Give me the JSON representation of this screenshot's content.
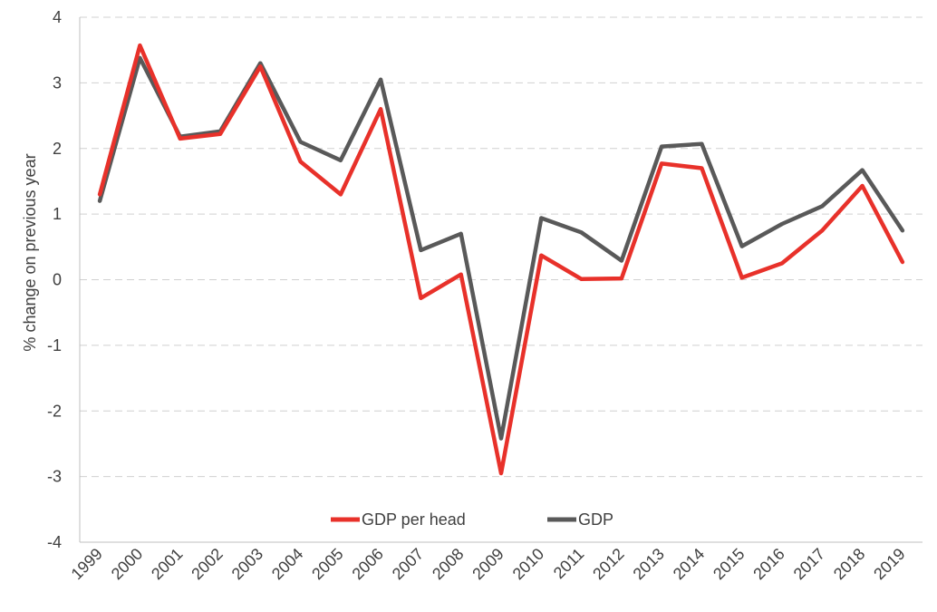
{
  "chart_data": {
    "type": "line",
    "title": "",
    "xlabel": "",
    "ylabel": "% change on previous  year",
    "ylim": [
      -4,
      4
    ],
    "yticks": [
      -4,
      -3,
      -2,
      -1,
      0,
      1,
      2,
      3,
      4
    ],
    "grid": "horizontal dashed",
    "legend_position": "bottom-center-inside",
    "categories": [
      "1999",
      "2000",
      "2001",
      "2002",
      "2003",
      "2004",
      "2005",
      "2006",
      "2007",
      "2008",
      "2009",
      "2010",
      "2011",
      "2012",
      "2013",
      "2014",
      "2015",
      "2016",
      "2017",
      "2018",
      "2019"
    ],
    "series": [
      {
        "name": "GDP per head",
        "color": "#e8312a",
        "values": [
          1.3,
          3.57,
          2.15,
          2.22,
          3.25,
          1.8,
          1.3,
          2.6,
          -0.28,
          0.08,
          -2.95,
          0.37,
          0.01,
          0.02,
          1.77,
          1.7,
          0.03,
          0.25,
          0.75,
          1.43,
          0.27
        ]
      },
      {
        "name": "GDP",
        "color": "#595959",
        "values": [
          1.2,
          3.38,
          2.18,
          2.26,
          3.3,
          2.1,
          1.82,
          3.05,
          0.45,
          0.7,
          -2.42,
          0.94,
          0.72,
          0.29,
          2.03,
          2.07,
          0.51,
          0.85,
          1.12,
          1.67,
          0.75
        ]
      }
    ]
  }
}
